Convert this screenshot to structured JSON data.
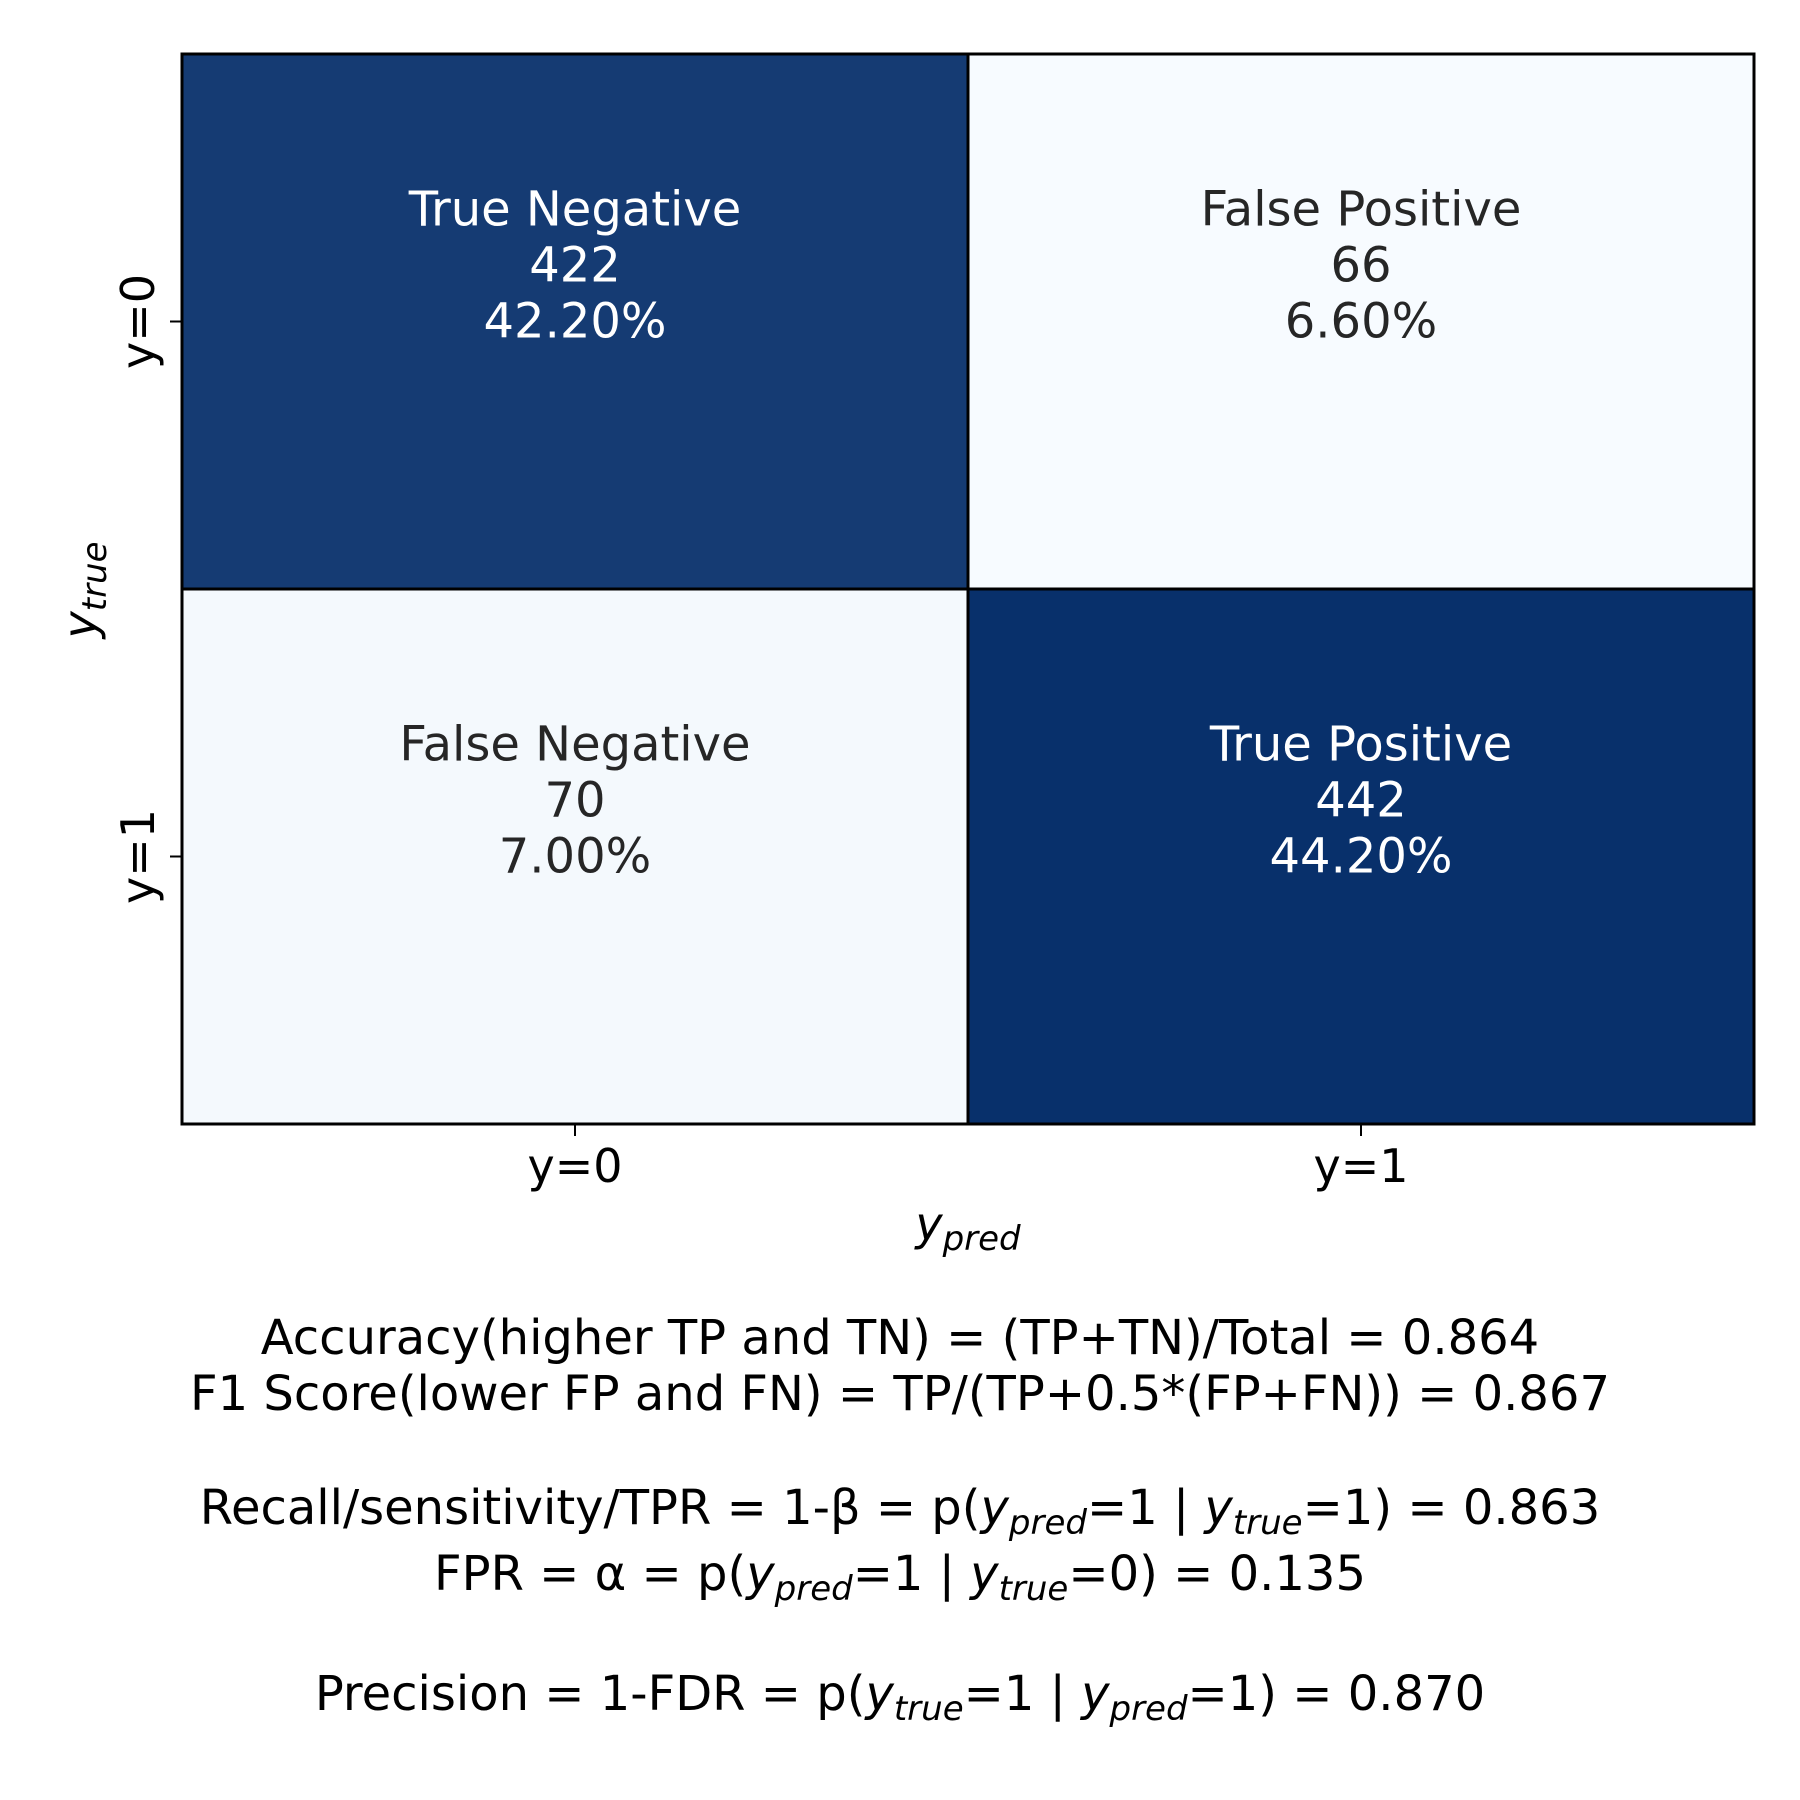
{
  "chart_data": {
    "type": "heatmap",
    "row_labels": [
      "y=0",
      "y=1"
    ],
    "col_labels": [
      "y=0",
      "y=1"
    ],
    "xlabel": {
      "main": "y",
      "sub": "pred"
    },
    "ylabel": {
      "main": "y",
      "sub": "true"
    },
    "cells": [
      [
        {
          "label": "True Negative",
          "count": 422,
          "percent": "42.20%"
        },
        {
          "label": "False Positive",
          "count": 66,
          "percent": "6.60%"
        }
      ],
      [
        {
          "label": "False Negative",
          "count": 70,
          "percent": "7.00%"
        },
        {
          "label": "True Positive",
          "count": 442,
          "percent": "44.20%"
        }
      ]
    ],
    "colormap": {
      "low": "#f7fbff",
      "high": "#08306b"
    },
    "text_colors": {
      "dark_cell": "#ffffff",
      "light_cell": "#262626"
    },
    "colorbar": false,
    "grid": false
  },
  "stats": {
    "accuracy": "Accuracy(higher TP and TN) = (TP+TN)/Total = 0.864",
    "f1": "F1 Score(lower FP and FN) = TP/(TP+0.5*(FP+FN)) = 0.867",
    "recall": {
      "prefix": "Recall/sensitivity/TPR = 1-β = p(",
      "var1": "y",
      "sub1": "pred",
      "mid": "=1 | ",
      "var2": "y",
      "sub2": "true",
      "suffix": "=1) = 0.863"
    },
    "fpr": {
      "prefix": "FPR = α = p(",
      "var1": "y",
      "sub1": "pred",
      "mid": "=1 | ",
      "var2": "y",
      "sub2": "true",
      "suffix": "=0) = 0.135"
    },
    "precision": {
      "prefix": "Precision = 1-FDR = p(",
      "var1": "y",
      "sub1": "true",
      "mid": "=1 | ",
      "var2": "y",
      "sub2": "pred",
      "suffix": "=1) = 0.870"
    }
  }
}
